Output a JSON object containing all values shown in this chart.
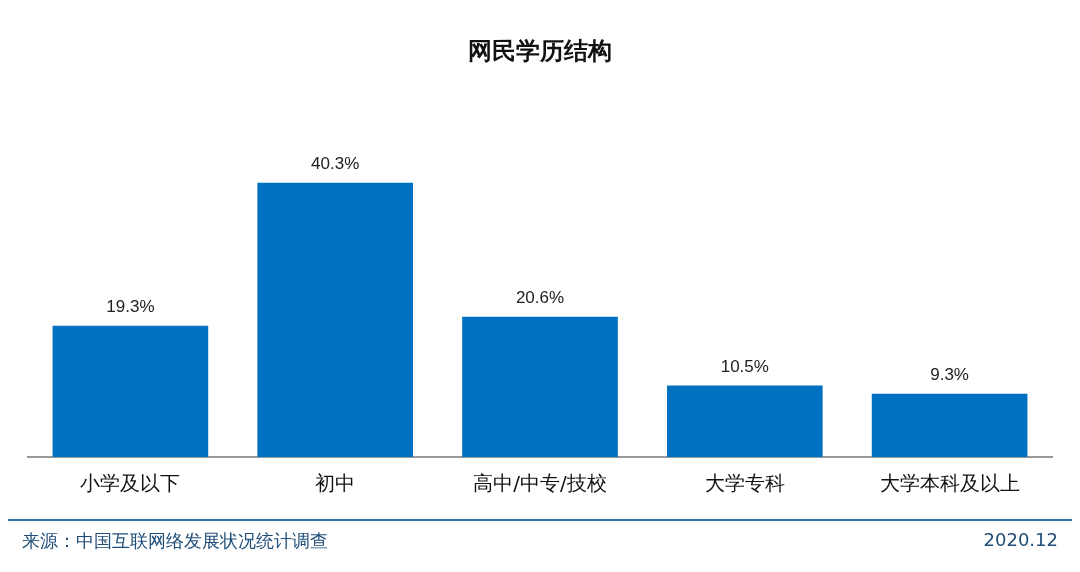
{
  "chart_data": {
    "type": "bar",
    "title": "网民学历结构",
    "categories": [
      "小学及以下",
      "初中",
      "高中/中专/技校",
      "大学专科",
      "大学本科及以上"
    ],
    "values": [
      19.3,
      40.3,
      20.6,
      10.5,
      9.3
    ],
    "value_labels": [
      "19.3%",
      "40.3%",
      "20.6%",
      "10.5%",
      "9.3%"
    ],
    "color": "#0070c0",
    "grid": false,
    "legend": false,
    "tick_labels": "x",
    "annotations": [
      "来源：中国互联网络发展状况统计调查",
      "2020.12"
    ]
  }
}
